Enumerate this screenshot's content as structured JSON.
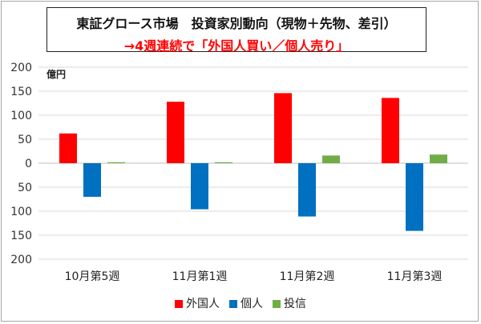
{
  "title": "東証グロース市場　投資家別動向（現物＋先物、差引）",
  "subtitle": "→4週連続で「外国人買い／個人売り」",
  "colors": {
    "外国人": "#ff0000",
    "個人": "#0070c0",
    "投信": "#70ad47"
  },
  "chart_data": {
    "type": "bar",
    "categories": [
      "10月第5週",
      "11月第1週",
      "11月第2週",
      "11月第3週"
    ],
    "series": [
      {
        "name": "外国人",
        "values": [
          62,
          128,
          146,
          136
        ]
      },
      {
        "name": "個人",
        "values": [
          -70,
          -96,
          -111,
          -141
        ]
      },
      {
        "name": "投信",
        "values": [
          2,
          2,
          16,
          18
        ]
      }
    ],
    "ylabel": "億円",
    "ylim": [
      -200,
      200
    ],
    "yticks": [
      200,
      150,
      100,
      50,
      0,
      -50,
      -100,
      -150,
      -200
    ],
    "ytick_labels": [
      "200",
      "150",
      "100",
      "50",
      "0",
      "50",
      "100",
      "150",
      "200"
    ],
    "grid": true,
    "legend": "bottom"
  }
}
